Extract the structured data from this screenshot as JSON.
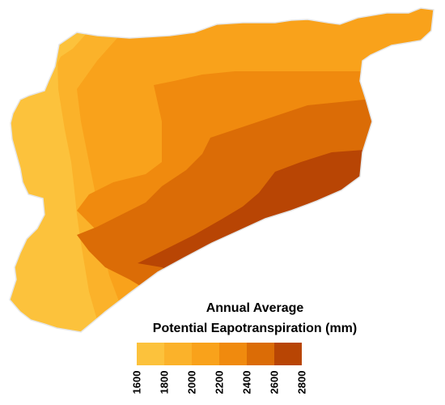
{
  "legend": {
    "title_line1": "Annual Average",
    "title_line2": "Potential Eapotranspiration (mm)",
    "breaks": [
      "1600",
      "1800",
      "2000",
      "2200",
      "2400",
      "2600",
      "2800"
    ],
    "colors": [
      "#fcc23c",
      "#fbb22a",
      "#f9a21b",
      "#f08a0e",
      "#db6c06",
      "#b84504"
    ]
  },
  "map": {
    "border_color": "#e6e6e6",
    "zone_colors": {
      "light": "#fcc23c",
      "low": "#fbb22a",
      "mid": "#f9a21b",
      "midhigh": "#f08a0e",
      "high": "#db6c06",
      "highest": "#b84504"
    }
  }
}
